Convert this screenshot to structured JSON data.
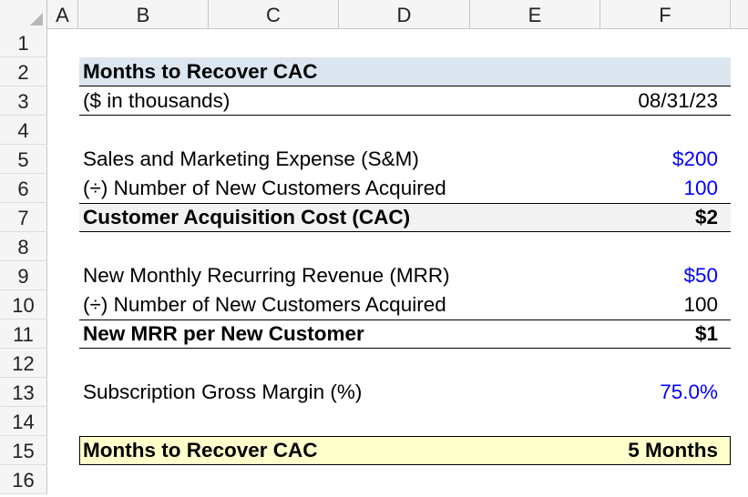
{
  "columns": [
    "A",
    "B",
    "C",
    "D",
    "E",
    "F"
  ],
  "rows": [
    "1",
    "2",
    "3",
    "4",
    "5",
    "6",
    "7",
    "8",
    "9",
    "10",
    "11",
    "12",
    "13",
    "14",
    "15",
    "16"
  ],
  "model": {
    "title": "Months to Recover CAC",
    "units": "($ in thousands)",
    "date": "08/31/23",
    "sm_label": "Sales and Marketing Expense (S&M)",
    "sm_value": "$200",
    "customers_label_1": "(÷) Number of New Customers Acquired",
    "customers_value_1": "100",
    "cac_label": "Customer Acquisition Cost (CAC)",
    "cac_value": "$2",
    "mrr_label": "New Monthly Recurring Revenue (MRR)",
    "mrr_value": "$50",
    "customers_label_2": "(÷) Number of New Customers Acquired",
    "customers_value_2": "100",
    "mrr_per_label": "New MRR per New Customer",
    "mrr_per_value": "$1",
    "margin_label": "Subscription Gross Margin (%)",
    "margin_value": "75.0%",
    "result_label": "Months to Recover CAC",
    "result_value": "5 Months"
  },
  "colors": {
    "title_fill": "#dce6f1",
    "input_blue": "#0000ff",
    "result_fill": "#ffffcc",
    "total_fill": "#f2f2f2"
  }
}
